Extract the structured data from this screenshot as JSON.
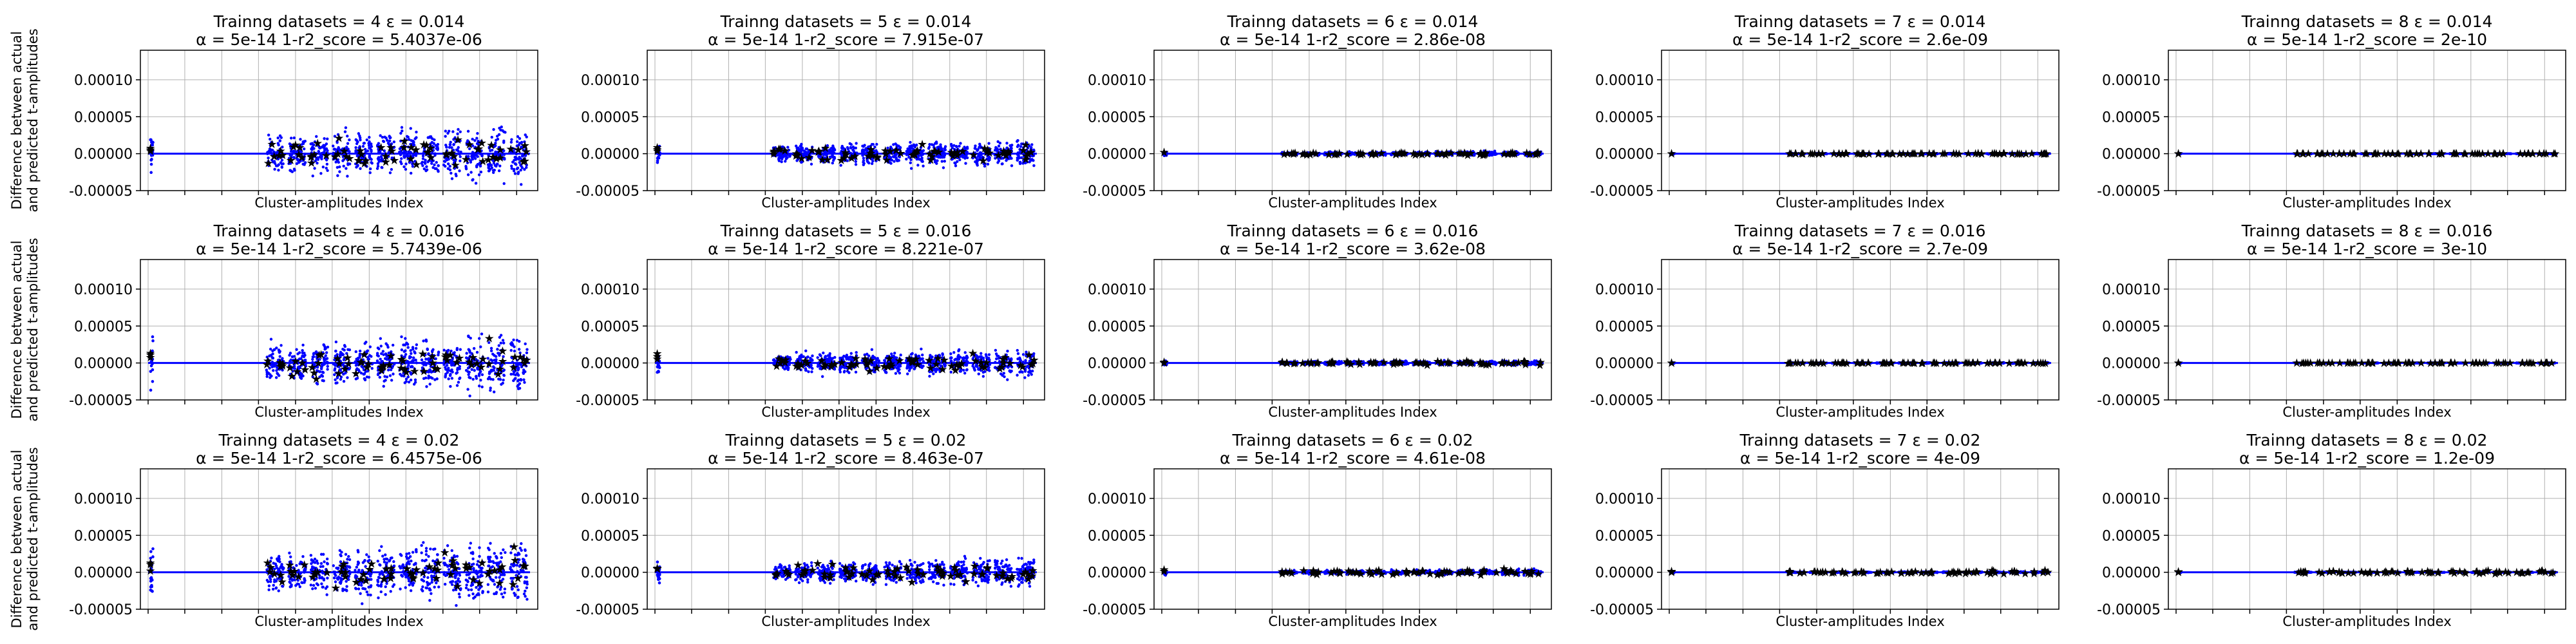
{
  "figure": {
    "ylabel_line1": "Difference between actual",
    "ylabel_line2": "and predicted t-amplitudes"
  },
  "chart_data": [
    {
      "type": "scatter",
      "title_line1": "Trainng datasets = 4  ε = 0.014",
      "title_line2": "α = 5e-14    1-r2_score = 5.4037e-06",
      "xlabel": "Cluster-amplitudes Index",
      "ylabel": "Difference between actual and predicted t-amplitudes",
      "yticks": [
        "0.00010",
        "0.00005",
        "0.00000",
        "-0.00005"
      ],
      "ylim": [
        -5e-05,
        0.00014
      ],
      "grid": true,
      "series": [
        {
          "marker": "dot",
          "color": "#0000ff",
          "spread": 6e-05
        },
        {
          "marker": "star",
          "color": "#ff0000",
          "spread": 4e-05
        }
      ]
    },
    {
      "type": "scatter",
      "title_line1": "Trainng datasets = 5  ε = 0.014",
      "title_line2": "α = 5e-14    1-r2_score = 7.915e-07",
      "xlabel": "Cluster-amplitudes Index",
      "ylabel": "",
      "yticks": [
        "0.00010",
        "0.00005",
        "0.00000",
        "-0.00005"
      ],
      "ylim": [
        -5e-05,
        0.00014
      ],
      "grid": true,
      "series": [
        {
          "marker": "dot",
          "color": "#0000ff",
          "spread": 3e-05
        },
        {
          "marker": "star",
          "color": "#ff0000",
          "spread": 2e-05
        }
      ]
    },
    {
      "type": "scatter",
      "title_line1": "Trainng datasets = 6  ε = 0.014",
      "title_line2": "α = 5e-14    1-r2_score = 2.86e-08",
      "xlabel": "Cluster-amplitudes Index",
      "ylabel": "",
      "yticks": [
        "0.00010",
        "0.00005",
        "0.00000",
        "-0.00005"
      ],
      "ylim": [
        -5e-05,
        0.00014
      ],
      "grid": true,
      "series": [
        {
          "marker": "dot",
          "color": "#0000ff",
          "spread": 5e-06
        },
        {
          "marker": "star",
          "color": "#ff0000",
          "spread": 4e-06
        }
      ]
    },
    {
      "type": "scatter",
      "title_line1": "Trainng datasets = 7  ε = 0.014",
      "title_line2": "α = 5e-14    1-r2_score = 2.6e-09",
      "xlabel": "Cluster-amplitudes Index",
      "ylabel": "",
      "yticks": [
        "0.00010",
        "0.00005",
        "0.00000",
        "-0.00005"
      ],
      "ylim": [
        -5e-05,
        0.00014
      ],
      "grid": true,
      "series": [
        {
          "marker": "dot",
          "color": "#0000ff",
          "spread": 1.2e-06
        },
        {
          "marker": "star",
          "color": "#ff0000",
          "spread": 1e-06
        }
      ]
    },
    {
      "type": "scatter",
      "title_line1": "Trainng datasets = 8  ε = 0.014",
      "title_line2": "α = 5e-14    1-r2_score = 2e-10",
      "xlabel": "Cluster-amplitudes Index",
      "ylabel": "",
      "yticks": [
        "0.00010",
        "0.00005",
        "0.00000",
        "-0.00005"
      ],
      "ylim": [
        -5e-05,
        0.00014
      ],
      "grid": true,
      "series": [
        {
          "marker": "dot",
          "color": "#0000ff",
          "spread": 4e-07
        },
        {
          "marker": "star",
          "color": "#ff0000",
          "spread": 3e-07
        }
      ]
    },
    {
      "type": "scatter",
      "title_line1": "Trainng datasets = 4  ε = 0.016",
      "title_line2": "α = 5e-14    1-r2_score = 5.7439e-06",
      "xlabel": "Cluster-amplitudes Index",
      "ylabel": "Difference between actual and predicted t-amplitudes",
      "yticks": [
        "0.00010",
        "0.00005",
        "0.00000",
        "-0.00005"
      ],
      "ylim": [
        -5e-05,
        0.00014
      ],
      "grid": true,
      "series": [
        {
          "marker": "dot",
          "color": "#0000ff",
          "spread": 6.2e-05
        },
        {
          "marker": "star",
          "color": "#ff0000",
          "spread": 4.2e-05
        }
      ]
    },
    {
      "type": "scatter",
      "title_line1": "Trainng datasets = 5  ε = 0.016",
      "title_line2": "α = 5e-14    1-r2_score = 8.221e-07",
      "xlabel": "Cluster-amplitudes Index",
      "ylabel": "",
      "yticks": [
        "0.00010",
        "0.00005",
        "0.00000",
        "-0.00005"
      ],
      "ylim": [
        -5e-05,
        0.00014
      ],
      "grid": true,
      "series": [
        {
          "marker": "dot",
          "color": "#0000ff",
          "spread": 3e-05
        },
        {
          "marker": "star",
          "color": "#ff0000",
          "spread": 2e-05
        }
      ]
    },
    {
      "type": "scatter",
      "title_line1": "Trainng datasets = 6  ε = 0.016",
      "title_line2": "α = 5e-14    1-r2_score = 3.62e-08",
      "xlabel": "Cluster-amplitudes Index",
      "ylabel": "",
      "yticks": [
        "0.00010",
        "0.00005",
        "0.00000",
        "-0.00005"
      ],
      "ylim": [
        -5e-05,
        0.00014
      ],
      "grid": true,
      "series": [
        {
          "marker": "dot",
          "color": "#0000ff",
          "spread": 5.5e-06
        },
        {
          "marker": "star",
          "color": "#ff0000",
          "spread": 4.5e-06
        }
      ]
    },
    {
      "type": "scatter",
      "title_line1": "Trainng datasets = 7  ε = 0.016",
      "title_line2": "α = 5e-14    1-r2_score = 2.7e-09",
      "xlabel": "Cluster-amplitudes Index",
      "ylabel": "",
      "yticks": [
        "0.00010",
        "0.00005",
        "0.00000",
        "-0.00005"
      ],
      "ylim": [
        -5e-05,
        0.00014
      ],
      "grid": true,
      "series": [
        {
          "marker": "dot",
          "color": "#0000ff",
          "spread": 1.2e-06
        },
        {
          "marker": "star",
          "color": "#ff0000",
          "spread": 1e-06
        }
      ]
    },
    {
      "type": "scatter",
      "title_line1": "Trainng datasets = 8  ε = 0.016",
      "title_line2": "α = 5e-14    1-r2_score = 3e-10",
      "xlabel": "Cluster-amplitudes Index",
      "ylabel": "",
      "yticks": [
        "0.00010",
        "0.00005",
        "0.00000",
        "-0.00005"
      ],
      "ylim": [
        -5e-05,
        0.00014
      ],
      "grid": true,
      "series": [
        {
          "marker": "dot",
          "color": "#0000ff",
          "spread": 4e-07
        },
        {
          "marker": "star",
          "color": "#ff0000",
          "spread": 3e-07
        }
      ]
    },
    {
      "type": "scatter",
      "title_line1": "Trainng datasets = 4  ε = 0.02",
      "title_line2": "α = 5e-14    1-r2_score = 6.4575e-06",
      "xlabel": "Cluster-amplitudes Index",
      "ylabel": "Difference between actual and predicted t-amplitudes",
      "yticks": [
        "0.00010",
        "0.00005",
        "0.00000",
        "-0.00005"
      ],
      "ylim": [
        -5e-05,
        0.00014
      ],
      "grid": true,
      "series": [
        {
          "marker": "dot",
          "color": "#0000ff",
          "spread": 6.6e-05
        },
        {
          "marker": "star",
          "color": "#ff0000",
          "spread": 4.5e-05
        }
      ]
    },
    {
      "type": "scatter",
      "title_line1": "Trainng datasets = 5  ε = 0.02",
      "title_line2": "α = 5e-14    1-r2_score = 8.463e-07",
      "xlabel": "Cluster-amplitudes Index",
      "ylabel": "",
      "yticks": [
        "0.00010",
        "0.00005",
        "0.00000",
        "-0.00005"
      ],
      "ylim": [
        -5e-05,
        0.00014
      ],
      "grid": true,
      "series": [
        {
          "marker": "dot",
          "color": "#0000ff",
          "spread": 3.2e-05
        },
        {
          "marker": "star",
          "color": "#ff0000",
          "spread": 2.2e-05
        }
      ]
    },
    {
      "type": "scatter",
      "title_line1": "Trainng datasets = 6  ε = 0.02",
      "title_line2": "α = 5e-14    1-r2_score = 4.61e-08",
      "xlabel": "Cluster-amplitudes Index",
      "ylabel": "",
      "yticks": [
        "0.00010",
        "0.00005",
        "0.00000",
        "-0.00005"
      ],
      "ylim": [
        -5e-05,
        0.00014
      ],
      "grid": true,
      "series": [
        {
          "marker": "dot",
          "color": "#0000ff",
          "spread": 6e-06
        },
        {
          "marker": "star",
          "color": "#ff0000",
          "spread": 8e-06
        }
      ]
    },
    {
      "type": "scatter",
      "title_line1": "Trainng datasets = 7  ε = 0.02",
      "title_line2": "α = 5e-14    1-r2_score = 4e-09",
      "xlabel": "Cluster-amplitudes Index",
      "ylabel": "",
      "yticks": [
        "0.00010",
        "0.00005",
        "0.00000",
        "-0.00005"
      ],
      "ylim": [
        -5e-05,
        0.00014
      ],
      "grid": true,
      "series": [
        {
          "marker": "dot",
          "color": "#0000ff",
          "spread": 1.4e-06
        },
        {
          "marker": "star",
          "color": "#ff0000",
          "spread": 4e-06
        }
      ]
    },
    {
      "type": "scatter",
      "title_line1": "Trainng datasets = 8  ε = 0.02",
      "title_line2": "α = 5e-14    1-r2_score = 1.2e-09",
      "xlabel": "Cluster-amplitudes Index",
      "ylabel": "",
      "yticks": [
        "0.00010",
        "0.00005",
        "0.00000",
        "-0.00005"
      ],
      "ylim": [
        -5e-05,
        0.00014
      ],
      "grid": true,
      "series": [
        {
          "marker": "dot",
          "color": "#0000ff",
          "spread": 8e-07
        },
        {
          "marker": "star",
          "color": "#ff0000",
          "spread": 4e-06
        }
      ]
    }
  ]
}
